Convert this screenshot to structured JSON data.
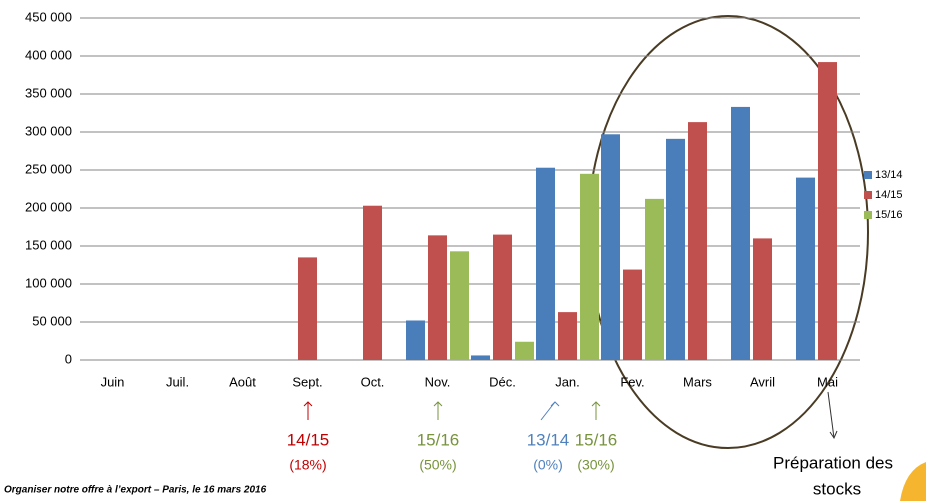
{
  "chart_data": {
    "type": "bar",
    "categories": [
      "Juin",
      "Juil.",
      "Août",
      "Sept.",
      "Oct.",
      "Nov.",
      "Déc.",
      "Jan.",
      "Fev.",
      "Mars",
      "Avril",
      "Mai"
    ],
    "series": [
      {
        "name": "13/14",
        "color": "#4a7ebb",
        "values": [
          null,
          null,
          null,
          null,
          null,
          52000,
          6000,
          253000,
          297000,
          291000,
          333000,
          240000
        ]
      },
      {
        "name": "14/15",
        "color": "#c0504d",
        "values": [
          null,
          null,
          null,
          135000,
          203000,
          164000,
          165000,
          63000,
          119000,
          313000,
          160000,
          392000
        ]
      },
      {
        "name": "15/16",
        "color": "#9bbb59",
        "values": [
          null,
          null,
          null,
          null,
          null,
          143000,
          24000,
          245000,
          212000,
          null,
          null,
          null
        ]
      }
    ],
    "ylim": [
      0,
      450000
    ],
    "yticks": [
      0,
      {
        "value": 50000,
        "label": "50 000"
      },
      {
        "value": 100000,
        "label": "100 000"
      },
      {
        "value": 150000,
        "label": "150 000"
      },
      {
        "value": 200000,
        "label": "200 000"
      },
      {
        "value": 250000,
        "label": "250 000"
      },
      {
        "value": 300000,
        "label": "300 000"
      },
      {
        "value": 350000,
        "label": "350 000"
      },
      {
        "value": 400000,
        "label": "400 000"
      },
      {
        "value": 450000,
        "label": "450 000"
      }
    ],
    "grid": true,
    "legend": "right",
    "annotations": [
      {
        "text": "14/15",
        "sub": "(18%)",
        "color": "#c00000"
      },
      {
        "text": "15/16",
        "sub": "(50%)",
        "color": "#77933c"
      },
      {
        "text": "13/14",
        "sub": "(0%)",
        "color": "#4f81bd"
      },
      {
        "text": "15/16",
        "sub": "(30%)",
        "color": "#77933c"
      }
    ],
    "callout": [
      "Préparation des",
      "stocks"
    ],
    "footer": "Organiser notre offre à l’export – Paris, le 16 mars 2016"
  }
}
